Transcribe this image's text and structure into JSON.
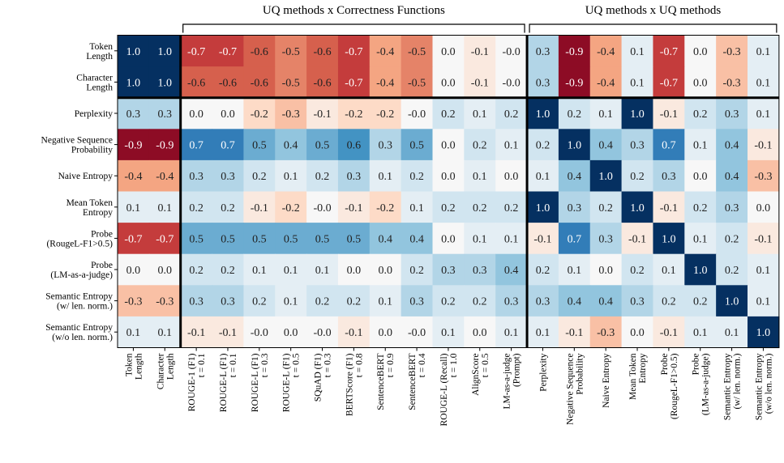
{
  "chart_data": {
    "type": "heatmap",
    "colormap": "RdBu",
    "vlim": [
      -1,
      1
    ],
    "column_groups": [
      {
        "label": "UQ methods x Correctness Functions",
        "from": 2,
        "to": 12
      },
      {
        "label": "UQ methods x UQ methods",
        "from": 13,
        "to": 20
      }
    ],
    "rows": [
      [
        "Token",
        "Length"
      ],
      [
        "Character",
        "Length"
      ],
      [
        "Perplexity"
      ],
      [
        "Negative Sequence",
        "Probability"
      ],
      [
        "Naive Entropy"
      ],
      [
        "Mean Token",
        "Entropy"
      ],
      [
        "Probe",
        "(RougeL-F1>0.5)"
      ],
      [
        "Probe",
        "(LM-as-a-judge)"
      ],
      [
        "Semantic Entropy",
        "(w/ len. norm.)"
      ],
      [
        "Semantic Entropy",
        "(w/o len. norm.)"
      ]
    ],
    "columns": [
      [
        "Token",
        "Length"
      ],
      [
        "Character",
        "Length"
      ],
      [
        "ROUGE-1 (F1)",
        "t = 0.1"
      ],
      [
        "ROUGE-L (F1)",
        "t = 0.1"
      ],
      [
        "ROUGE-L (F1)",
        "t = 0.3"
      ],
      [
        "ROUGE-L (F1)",
        "t = 0.5"
      ],
      [
        "SQuAD (F1)",
        "t = 0.3"
      ],
      [
        "BERTScore (F1)",
        "t = 0.8"
      ],
      [
        "SentenceBERT",
        "t = 0.9"
      ],
      [
        "SentenceBERT",
        "t = 0.4"
      ],
      [
        "ROUGE-L (Recall)",
        "t = 1.0"
      ],
      [
        "AlignScore",
        "t = 0.5"
      ],
      [
        "LM-as-a-judge",
        "(Prompt)"
      ],
      [
        "Perplexity"
      ],
      [
        "Negative Sequence",
        "Probability"
      ],
      [
        "Naive Entropy"
      ],
      [
        "Mean Token",
        "Entropy"
      ],
      [
        "Probe",
        "(RougeL-F1>0.5)"
      ],
      [
        "Probe",
        "(LM-as-a-judge)"
      ],
      [
        "Semantic Entropy",
        "(w/ len. norm.)"
      ],
      [
        "Semantic Entropy",
        "(w/o len. norm.)"
      ]
    ],
    "values": [
      [
        "1.0",
        "1.0",
        "-0.7",
        "-0.7",
        "-0.6",
        "-0.5",
        "-0.6",
        "-0.7",
        "-0.4",
        "-0.5",
        "0.0",
        "-0.1",
        "-0.0",
        "0.3",
        "-0.9",
        "-0.4",
        "0.1",
        "-0.7",
        "0.0",
        "-0.3",
        "0.1"
      ],
      [
        "1.0",
        "1.0",
        "-0.6",
        "-0.6",
        "-0.6",
        "-0.5",
        "-0.6",
        "-0.7",
        "-0.4",
        "-0.5",
        "0.0",
        "-0.1",
        "-0.0",
        "0.3",
        "-0.9",
        "-0.4",
        "0.1",
        "-0.7",
        "0.0",
        "-0.3",
        "0.1"
      ],
      [
        "0.3",
        "0.3",
        "0.0",
        "0.0",
        "-0.2",
        "-0.3",
        "-0.1",
        "-0.2",
        "-0.2",
        "-0.0",
        "0.2",
        "0.1",
        "0.2",
        "1.0",
        "0.2",
        "0.1",
        "1.0",
        "-0.1",
        "0.2",
        "0.3",
        "0.1"
      ],
      [
        "-0.9",
        "-0.9",
        "0.7",
        "0.7",
        "0.5",
        "0.4",
        "0.5",
        "0.6",
        "0.3",
        "0.5",
        "0.0",
        "0.2",
        "0.1",
        "0.2",
        "1.0",
        "0.4",
        "0.3",
        "0.7",
        "0.1",
        "0.4",
        "-0.1"
      ],
      [
        "-0.4",
        "-0.4",
        "0.3",
        "0.3",
        "0.2",
        "0.1",
        "0.2",
        "0.3",
        "0.1",
        "0.2",
        "0.0",
        "0.1",
        "0.0",
        "0.1",
        "0.4",
        "1.0",
        "0.2",
        "0.3",
        "0.0",
        "0.4",
        "-0.3"
      ],
      [
        "0.1",
        "0.1",
        "0.2",
        "0.2",
        "-0.1",
        "-0.2",
        "-0.0",
        "-0.1",
        "-0.2",
        "0.1",
        "0.2",
        "0.2",
        "0.2",
        "1.0",
        "0.3",
        "0.2",
        "1.0",
        "-0.1",
        "0.2",
        "0.3",
        "0.0"
      ],
      [
        "-0.7",
        "-0.7",
        "0.5",
        "0.5",
        "0.5",
        "0.5",
        "0.5",
        "0.5",
        "0.4",
        "0.4",
        "0.0",
        "0.1",
        "0.1",
        "-0.1",
        "0.7",
        "0.3",
        "-0.1",
        "1.0",
        "0.1",
        "0.2",
        "-0.1"
      ],
      [
        "0.0",
        "0.0",
        "0.2",
        "0.2",
        "0.1",
        "0.1",
        "0.1",
        "0.0",
        "0.0",
        "0.2",
        "0.3",
        "0.3",
        "0.4",
        "0.2",
        "0.1",
        "0.0",
        "0.2",
        "0.1",
        "1.0",
        "0.2",
        "0.1"
      ],
      [
        "-0.3",
        "-0.3",
        "0.3",
        "0.3",
        "0.2",
        "0.1",
        "0.2",
        "0.2",
        "0.1",
        "0.3",
        "0.2",
        "0.2",
        "0.3",
        "0.3",
        "0.4",
        "0.4",
        "0.3",
        "0.2",
        "0.2",
        "1.0",
        "0.1"
      ],
      [
        "0.1",
        "0.1",
        "-0.1",
        "-0.1",
        "-0.0",
        "0.0",
        "-0.0",
        "-0.1",
        "0.0",
        "-0.0",
        "0.1",
        "0.0",
        "0.1",
        "0.1",
        "-0.1",
        "-0.3",
        "0.0",
        "-0.1",
        "0.1",
        "0.1",
        "1.0"
      ]
    ]
  }
}
